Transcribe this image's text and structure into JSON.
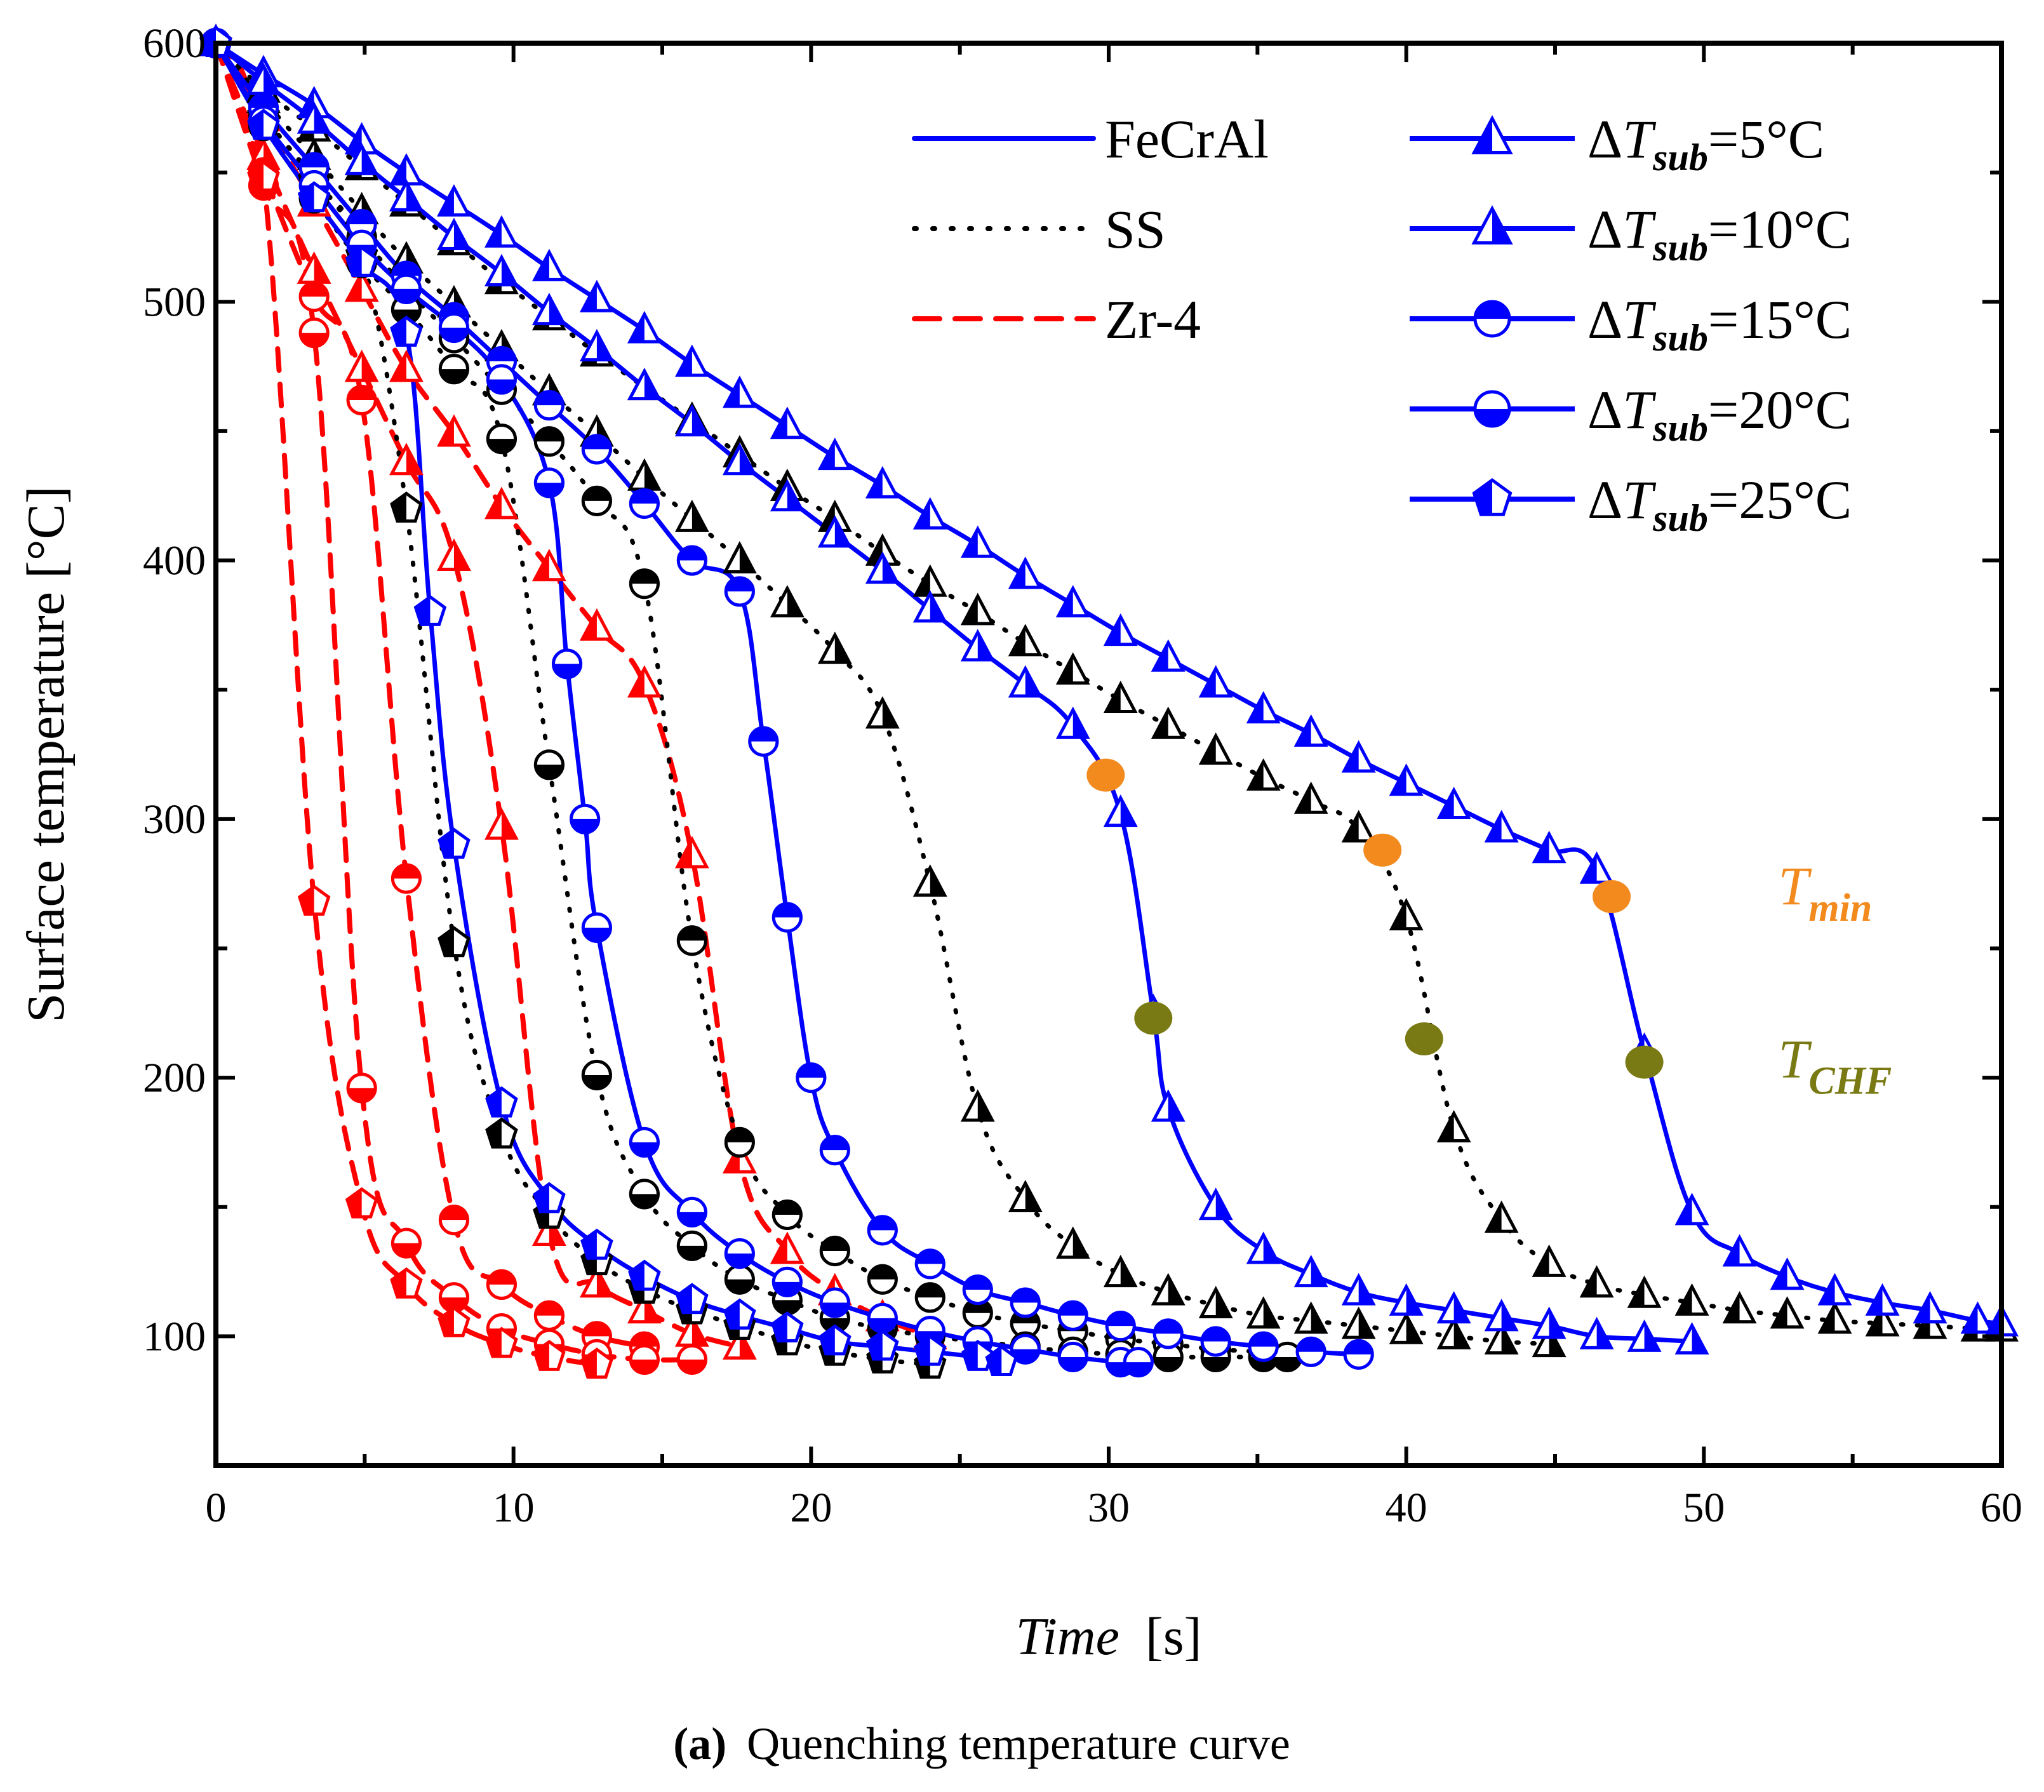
{
  "chart_data": {
    "type": "line",
    "title": "",
    "xlabel_italic": "Time",
    "xlabel_unit": "[s]",
    "ylabel": "Surface temperature [°C]",
    "xlim": [
      0,
      60
    ],
    "ylim": [
      50,
      600
    ],
    "xticks": [
      "0",
      "10",
      "20",
      "30",
      "40",
      "50",
      "60"
    ],
    "yticks": [
      "100",
      "200",
      "300",
      "400",
      "500",
      "600"
    ],
    "grid": false,
    "caption_bold": "(a)",
    "caption_text": "Quenching temperature curve",
    "legend": {
      "materials": [
        {
          "label": "FeCrAl",
          "color": "#0000ff",
          "dash": "solid"
        },
        {
          "label": "SS",
          "color": "#000000",
          "dash": "dot"
        },
        {
          "label": "Zr-4",
          "color": "#ff0000",
          "dash": "dash"
        }
      ],
      "subcooling": [
        {
          "delta": "Δ",
          "T": "T",
          "sub": "sub",
          "value": "=5°C",
          "marker": "triangle-left-fill"
        },
        {
          "delta": "Δ",
          "T": "T",
          "sub": "sub",
          "value": "=10°C",
          "marker": "triangle-right-fill"
        },
        {
          "delta": "Δ",
          "T": "T",
          "sub": "sub",
          "value": "=15°C",
          "marker": "circle-top-fill"
        },
        {
          "delta": "Δ",
          "T": "T",
          "sub": "sub",
          "value": "=20°C",
          "marker": "circle-bottom-fill"
        },
        {
          "delta": "Δ",
          "T": "T",
          "sub": "sub",
          "value": "=25°C",
          "marker": "pentagon-left-fill"
        }
      ]
    },
    "annotations": [
      {
        "label": "T",
        "sub": "min",
        "color": "#f28a1e",
        "x": 52.5,
        "y": 272
      },
      {
        "label": "T",
        "sub": "CHF",
        "color": "#7a7a14",
        "x": 52.5,
        "y": 205
      }
    ],
    "marked_points": {
      "T_min": {
        "color": "#f28a1e",
        "points": [
          [
            29.9,
            317
          ],
          [
            39.2,
            288
          ],
          [
            46.9,
            270
          ]
        ]
      },
      "T_CHF": {
        "color": "#7a7a14",
        "points": [
          [
            31.5,
            223
          ],
          [
            40.6,
            215
          ],
          [
            48.0,
            206
          ]
        ]
      }
    },
    "series": [
      {
        "name": "FeCrAl ΔTsub=5°C",
        "material": "FeCrAl",
        "marker": "triangle-left-fill",
        "x": [
          0,
          1.6,
          3.3,
          4.9,
          6.4,
          8.0,
          9.6,
          11.2,
          12.8,
          14.4,
          16.0,
          17.6,
          19.2,
          20.8,
          22.4,
          24.0,
          25.6,
          27.2,
          28.8,
          30.4,
          32.0,
          33.6,
          35.2,
          36.8,
          38.4,
          40.0,
          41.6,
          43.2,
          44.8,
          46.4,
          48.0,
          49.6,
          51.2,
          52.8,
          54.4,
          56.0,
          57.6,
          59.2,
          60.0
        ],
        "y": [
          600,
          588,
          576,
          562,
          550,
          538,
          526,
          513,
          501,
          489,
          476,
          464,
          452,
          440,
          429,
          417,
          406,
          394,
          383,
          372,
          362,
          352,
          342,
          333,
          323,
          314,
          305,
          296,
          288,
          280,
          210,
          148,
          132,
          123,
          117,
          113,
          110,
          106,
          105
        ]
      },
      {
        "name": "FeCrAl ΔTsub=10°C",
        "material": "FeCrAl",
        "marker": "triangle-right-fill",
        "x": [
          0,
          1.6,
          3.3,
          4.9,
          6.4,
          8.0,
          9.6,
          11.2,
          12.8,
          14.4,
          16.0,
          17.6,
          19.2,
          20.8,
          22.4,
          24.0,
          25.6,
          27.2,
          28.8,
          30.4,
          31.5,
          32.0,
          33.6,
          35.2,
          36.8,
          38.4,
          40.0,
          41.6,
          43.2,
          44.8,
          46.4,
          48.0,
          49.6
        ],
        "y": [
          600,
          585,
          570,
          554,
          540,
          525,
          511,
          496,
          482,
          467,
          453,
          438,
          424,
          410,
          396,
          381,
          366,
          352,
          336,
          302,
          225,
          188,
          150,
          133,
          124,
          117,
          113,
          110,
          107,
          104,
          100,
          99,
          98
        ]
      },
      {
        "name": "FeCrAl ΔTsub=15°C",
        "material": "FeCrAl",
        "marker": "circle-top-fill",
        "x": [
          0,
          1.6,
          3.3,
          4.9,
          6.4,
          8.0,
          9.6,
          11.2,
          12.8,
          14.4,
          16.0,
          17.6,
          18.4,
          19.2,
          20.0,
          20.8,
          22.4,
          24.0,
          25.6,
          27.2,
          28.8,
          30.4,
          32.0,
          33.6,
          35.2,
          36.8,
          38.4
        ],
        "y": [
          600,
          575,
          552,
          530,
          510,
          494,
          477,
          460,
          443,
          422,
          400,
          388,
          330,
          262,
          200,
          172,
          141,
          128,
          118,
          113,
          108,
          104,
          101,
          98,
          96,
          94,
          93
        ]
      },
      {
        "name": "FeCrAl ΔTsub=20°C",
        "material": "FeCrAl",
        "marker": "circle-bottom-fill",
        "x": [
          0,
          1.6,
          3.3,
          4.9,
          6.4,
          8.0,
          9.6,
          11.2,
          11.8,
          12.4,
          12.8,
          14.4,
          16.0,
          17.6,
          19.2,
          20.8,
          22.4,
          24.0,
          25.6,
          27.2,
          28.8,
          30.4,
          31.0
        ],
        "y": [
          600,
          570,
          545,
          522,
          505,
          490,
          470,
          430,
          360,
          300,
          258,
          175,
          148,
          132,
          121,
          113,
          107,
          102,
          98,
          95,
          92,
          90,
          90
        ]
      },
      {
        "name": "FeCrAl ΔTsub=25°C",
        "material": "FeCrAl",
        "marker": "pentagon-left-fill",
        "x": [
          0,
          1.6,
          3.3,
          4.9,
          6.4,
          7.2,
          8.0,
          9.6,
          11.2,
          12.8,
          14.4,
          16.0,
          17.6,
          19.2,
          20.8,
          22.4,
          24.0,
          25.6,
          26.4
        ],
        "y": [
          600,
          568,
          540,
          515,
          488,
          380,
          290,
          190,
          153,
          135,
          123,
          114,
          108,
          103,
          98,
          96,
          94,
          92,
          90
        ]
      },
      {
        "name": "SS ΔTsub=5°C",
        "material": "SS",
        "marker": "triangle-left-fill",
        "x": [
          0,
          1.6,
          3.3,
          4.9,
          6.4,
          8.0,
          9.6,
          11.2,
          12.8,
          14.4,
          16.0,
          17.6,
          19.2,
          20.8,
          22.4,
          24.0,
          25.6,
          27.2,
          28.8,
          30.4,
          32.0,
          33.6,
          35.2,
          36.8,
          38.4,
          40.0,
          41.6,
          43.2,
          44.8,
          46.4,
          48.0,
          49.6,
          51.2,
          52.8,
          54.4,
          56.0,
          57.6,
          59.2,
          60.0
        ],
        "y": [
          600,
          582,
          567,
          552,
          538,
          523,
          508,
          494,
          480,
          467,
          454,
          441,
          428,
          416,
          403,
          391,
          380,
          368,
          357,
          346,
          336,
          326,
          316,
          307,
          296,
          262,
          180,
          145,
          128,
          120,
          116,
          113,
          110,
          108,
          106,
          105,
          104,
          103,
          103
        ]
      },
      {
        "name": "SS ΔTsub=10°C",
        "material": "SS",
        "marker": "triangle-right-fill",
        "x": [
          0,
          1.6,
          3.3,
          4.9,
          6.4,
          8.0,
          9.6,
          11.2,
          12.8,
          14.4,
          16.0,
          17.6,
          19.2,
          20.8,
          22.4,
          24.0,
          25.6,
          27.2,
          28.8,
          30.4,
          32.0,
          33.6,
          35.2,
          36.8,
          38.4,
          40.0,
          41.6,
          43.2,
          44.8
        ],
        "y": [
          600,
          578,
          556,
          535,
          516,
          499,
          482,
          465,
          449,
          432,
          416,
          400,
          383,
          365,
          340,
          275,
          188,
          153,
          135,
          124,
          117,
          112,
          108,
          106,
          104,
          102,
          100,
          98,
          97
        ]
      },
      {
        "name": "SS ΔTsub=15°C",
        "material": "SS",
        "marker": "circle-top-fill",
        "x": [
          0,
          1.6,
          3.3,
          4.9,
          6.4,
          8.0,
          9.6,
          11.2,
          12.8,
          14.4,
          16.0,
          17.6,
          19.2,
          20.8,
          22.4,
          24.0,
          25.6,
          27.2,
          28.8,
          30.4,
          32.0,
          33.6,
          35.2
        ],
        "y": [
          600,
          572,
          548,
          525,
          505,
          486,
          466,
          446,
          423,
          391,
          253,
          175,
          147,
          133,
          122,
          115,
          109,
          105,
          102,
          99,
          97,
          95,
          94
        ]
      },
      {
        "name": "SS ΔTsub=20°C",
        "material": "SS",
        "marker": "circle-bottom-fill",
        "x": [
          0,
          1.6,
          3.3,
          4.9,
          6.4,
          8.0,
          9.6,
          11.2,
          12.8,
          14.4,
          16.0,
          17.6,
          19.2,
          20.8,
          22.4,
          24.0,
          25.6,
          27.2,
          28.8,
          30.4,
          32.0,
          33.6,
          35.2,
          36.0
        ],
        "y": [
          600,
          568,
          540,
          515,
          497,
          474,
          447,
          321,
          201,
          155,
          135,
          122,
          114,
          107,
          103,
          100,
          98,
          96,
          94,
          93,
          92,
          92,
          92,
          92
        ]
      },
      {
        "name": "SS ΔTsub=25°C",
        "material": "SS",
        "marker": "pentagon-left-fill",
        "x": [
          0,
          1.6,
          3.3,
          4.9,
          6.4,
          8.0,
          9.6,
          11.2,
          12.8,
          14.4,
          16.0,
          17.6,
          19.2,
          20.8,
          22.4,
          24.0
        ],
        "y": [
          600,
          572,
          547,
          518,
          420,
          252,
          178,
          147,
          129,
          118,
          110,
          104,
          98,
          94,
          91,
          89
        ]
      },
      {
        "name": "Zr-4 ΔTsub=5°C",
        "material": "Zr-4",
        "marker": "triangle-left-fill",
        "x": [
          0,
          1.6,
          3.3,
          4.9,
          6.4,
          8.0,
          9.6,
          11.2,
          12.8,
          14.4,
          16.0,
          17.6,
          19.2,
          20.8,
          22.4,
          24.0
        ],
        "y": [
          600,
          571,
          538,
          505,
          474,
          449,
          421,
          397,
          374,
          352,
          286,
          168,
          133,
          117,
          107,
          100
        ]
      },
      {
        "name": "Zr-4 ΔTsub=10°C",
        "material": "Zr-4",
        "marker": "triangle-right-fill",
        "x": [
          0,
          1.6,
          3.3,
          4.9,
          6.4,
          8.0,
          9.6,
          11.2,
          12.8,
          14.4,
          16.0,
          17.6
        ],
        "y": [
          600,
          556,
          512,
          474,
          438,
          401,
          297,
          140,
          120,
          110,
          101,
          96
        ]
      },
      {
        "name": "Zr-4 ΔTsub=15°C",
        "material": "Zr-4",
        "marker": "circle-top-fill",
        "x": [
          0,
          1.6,
          3.3,
          4.9,
          6.4,
          8.0,
          9.6,
          11.2,
          12.8,
          14.4
        ],
        "y": [
          600,
          550,
          502,
          462,
          277,
          145,
          120,
          108,
          100,
          96
        ]
      },
      {
        "name": "Zr-4 ΔTsub=20°C",
        "material": "Zr-4",
        "marker": "circle-bottom-fill",
        "x": [
          0,
          1.6,
          3.3,
          4.9,
          6.4,
          8.0,
          9.6,
          11.2,
          12.8,
          14.4,
          16.0
        ],
        "y": [
          600,
          545,
          488,
          196,
          136,
          115,
          103,
          97,
          93,
          91,
          91
        ]
      },
      {
        "name": "Zr-4 ΔTsub=25°C",
        "material": "Zr-4",
        "marker": "pentagon-left-fill",
        "x": [
          0,
          1.6,
          3.3,
          4.9,
          6.4,
          8.0,
          9.6,
          11.2,
          12.8
        ],
        "y": [
          600,
          548,
          268,
          151,
          120,
          105,
          97,
          92,
          89
        ]
      }
    ]
  }
}
